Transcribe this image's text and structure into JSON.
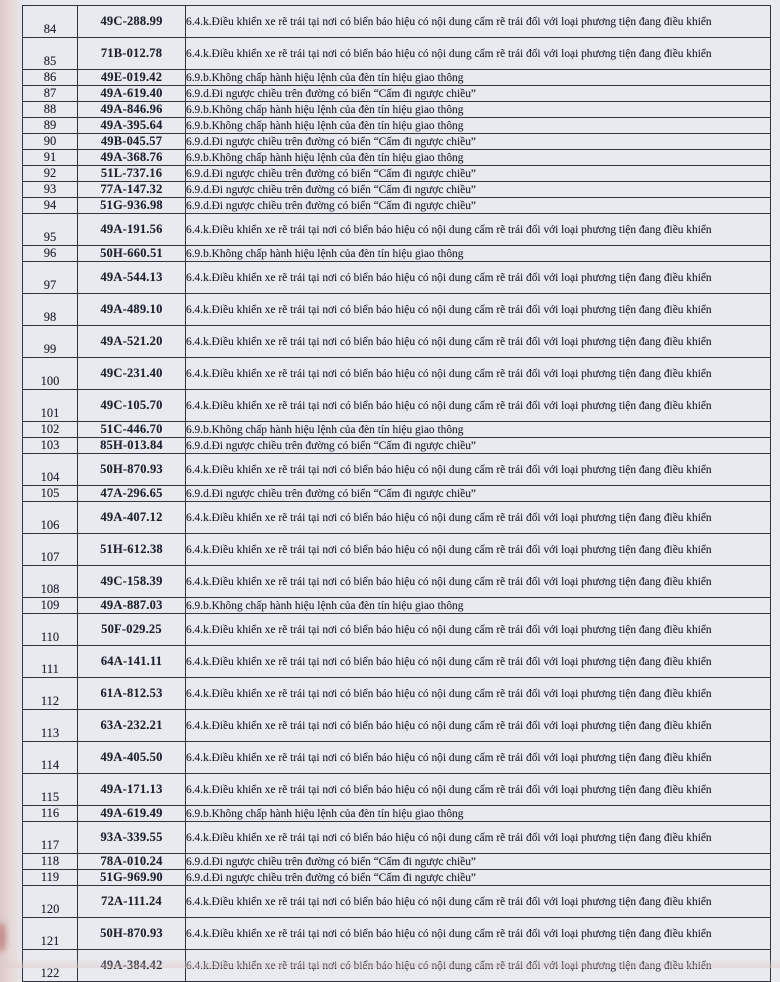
{
  "page": {
    "paper_color": "#e9eaef",
    "edge_tint": "#dcc9c6",
    "border_color": "#33343f",
    "text_color": "#1f2433"
  },
  "table": {
    "violations": {
      "A": "6.4.k.Điều khiển xe rẽ trái tại nơi có biển báo hiệu có nội dung cấm rẽ trái đối với loại phương tiện đang điều khiển",
      "B": "6.9.b.Không chấp hành hiệu lệnh của đèn tín hiệu giao thông",
      "C": "6.9.d.Đi ngược chiều trên đường có biển “Cấm đi ngược chiều”"
    },
    "rows": [
      {
        "no": "84",
        "plate": "49C-288.99",
        "v": "A"
      },
      {
        "no": "85",
        "plate": "71B-012.78",
        "v": "A"
      },
      {
        "no": "86",
        "plate": "49E-019.42",
        "v": "B"
      },
      {
        "no": "87",
        "plate": "49A-619.40",
        "v": "C"
      },
      {
        "no": "88",
        "plate": "49A-846.96",
        "v": "B"
      },
      {
        "no": "89",
        "plate": "49A-395.64",
        "v": "B"
      },
      {
        "no": "90",
        "plate": "49B-045.57",
        "v": "C"
      },
      {
        "no": "91",
        "plate": "49A-368.76",
        "v": "B"
      },
      {
        "no": "92",
        "plate": "51L-737.16",
        "v": "C"
      },
      {
        "no": "93",
        "plate": "77A-147.32",
        "v": "C"
      },
      {
        "no": "94",
        "plate": "51G-936.98",
        "v": "C"
      },
      {
        "no": "95",
        "plate": "49A-191.56",
        "v": "A"
      },
      {
        "no": "96",
        "plate": "50H-660.51",
        "v": "B"
      },
      {
        "no": "97",
        "plate": "49A-544.13",
        "v": "A"
      },
      {
        "no": "98",
        "plate": "49A-489.10",
        "v": "A"
      },
      {
        "no": "99",
        "plate": "49A-521.20",
        "v": "A"
      },
      {
        "no": "100",
        "plate": "49C-231.40",
        "v": "A"
      },
      {
        "no": "101",
        "plate": "49C-105.70",
        "v": "A"
      },
      {
        "no": "102",
        "plate": "51C-446.70",
        "v": "B"
      },
      {
        "no": "103",
        "plate": "85H-013.84",
        "v": "C"
      },
      {
        "no": "104",
        "plate": "50H-870.93",
        "v": "A"
      },
      {
        "no": "105",
        "plate": "47A-296.65",
        "v": "C"
      },
      {
        "no": "106",
        "plate": "49A-407.12",
        "v": "A"
      },
      {
        "no": "107",
        "plate": "51H-612.38",
        "v": "A"
      },
      {
        "no": "108",
        "plate": "49C-158.39",
        "v": "A"
      },
      {
        "no": "109",
        "plate": "49A-887.03",
        "v": "B"
      },
      {
        "no": "110",
        "plate": "50F-029.25",
        "v": "A"
      },
      {
        "no": "111",
        "plate": "64A-141.11",
        "v": "A"
      },
      {
        "no": "112",
        "plate": "61A-812.53",
        "v": "A"
      },
      {
        "no": "113",
        "plate": "63A-232.21",
        "v": "A"
      },
      {
        "no": "114",
        "plate": "49A-405.50",
        "v": "A"
      },
      {
        "no": "115",
        "plate": "49A-171.13",
        "v": "A"
      },
      {
        "no": "116",
        "plate": "49A-619.49",
        "v": "B"
      },
      {
        "no": "117",
        "plate": "93A-339.55",
        "v": "A"
      },
      {
        "no": "118",
        "plate": "78A-010.24",
        "v": "C"
      },
      {
        "no": "119",
        "plate": "51G-969.90",
        "v": "C"
      },
      {
        "no": "120",
        "plate": "72A-111.24",
        "v": "A"
      },
      {
        "no": "121",
        "plate": "50H-870.93",
        "v": "A"
      },
      {
        "no": "122",
        "plate": "49A-384.42",
        "v": "A"
      }
    ]
  }
}
